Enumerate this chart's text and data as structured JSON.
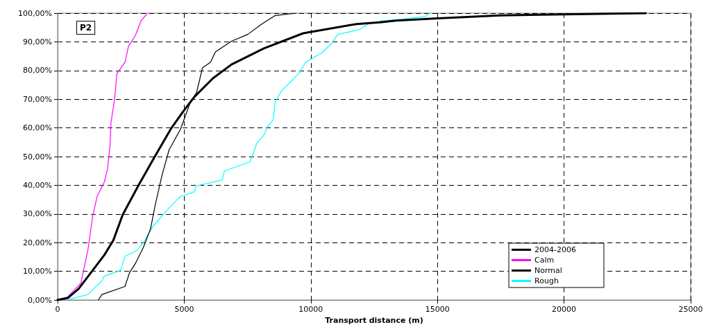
{
  "chart_data": {
    "type": "line",
    "xlabel": "Transport distance (m)",
    "annotations": [
      "P2"
    ],
    "xlim": [
      0,
      25000
    ],
    "xticks": [
      0,
      5000,
      10000,
      15000,
      20000,
      25000
    ],
    "ylim": [
      0,
      100
    ],
    "yticks": [
      {
        "value": 0,
        "label": "0,00%"
      },
      {
        "value": 10,
        "label": "10,00%"
      },
      {
        "value": 20,
        "label": "20,00%"
      },
      {
        "value": 30,
        "label": "30,00%"
      },
      {
        "value": 40,
        "label": "40,00%"
      },
      {
        "value": 50,
        "label": "50,00%"
      },
      {
        "value": 60,
        "label": "60,00%"
      },
      {
        "value": 70,
        "label": "70,00%"
      },
      {
        "value": 80,
        "label": "80,00%"
      },
      {
        "value": 90,
        "label": "90,00%"
      },
      {
        "value": 100,
        "label": "100,00%"
      }
    ],
    "grid": true,
    "legend": "bottom right",
    "marker": "none",
    "line_style": "solid",
    "series": [
      {
        "name": "2004-2006",
        "color": "#000000",
        "x": [
          0,
          420,
          830,
          1840,
          2200,
          2570,
          3210,
          3850,
          4490,
          4950,
          5400,
          6135,
          6865,
          8145,
          9700,
          11800,
          12720,
          13360,
          15000,
          17470,
          19940,
          23230
        ],
        "values": [
          0,
          0.8,
          3.9,
          15.6,
          20.8,
          29.7,
          40.2,
          50.2,
          59.9,
          65.6,
          70.8,
          77.3,
          82.1,
          87.7,
          93.0,
          96.2,
          96.8,
          97.4,
          98.2,
          99.2,
          99.6,
          100
        ]
      },
      {
        "name": "Calm",
        "color": "#ff00ff",
        "x": [
          280,
          920,
          1200,
          1380,
          1560,
          1840,
          1975,
          2070,
          2110,
          2250,
          2340,
          2660,
          2800,
          3070,
          3300,
          3530
        ],
        "values": [
          0,
          5.9,
          17.6,
          28.9,
          36.1,
          41.0,
          45.8,
          53.9,
          61.9,
          70.0,
          78.9,
          82.9,
          88.5,
          92.2,
          97.4,
          99.8
        ]
      },
      {
        "name": "Normal",
        "color": "#000000",
        "x": [
          1610,
          1750,
          2660,
          2840,
          3070,
          3390,
          3670,
          3850,
          4120,
          4400,
          4850,
          5220,
          5490,
          5720,
          6040,
          6230,
          6865,
          7510,
          8060,
          8600,
          9425
        ],
        "values": [
          0,
          1.9,
          4.7,
          9.5,
          12.7,
          18.4,
          24.8,
          32.9,
          43.4,
          52.3,
          59.5,
          68.4,
          72.4,
          80.9,
          82.9,
          86.5,
          90.2,
          92.6,
          96.2,
          99.2,
          100
        ]
      },
      {
        "name": "Rough",
        "color": "#00ffff",
        "x": [
          330,
          1200,
          1750,
          1840,
          2480,
          2660,
          3120,
          3390,
          3760,
          4400,
          4850,
          5400,
          5490,
          6500,
          6590,
          7600,
          7870,
          8145,
          8280,
          8510,
          8600,
          8830,
          9240,
          9560,
          9790,
          10430,
          10800,
          11070,
          11900,
          12260,
          12810,
          13630,
          14540,
          14650
        ],
        "values": [
          0,
          1.9,
          6.7,
          8.3,
          10.3,
          15.2,
          17.2,
          20.0,
          25.6,
          32.1,
          36.1,
          37.7,
          39.8,
          41.8,
          45.0,
          48.2,
          54.7,
          57.5,
          60.3,
          62.7,
          69.2,
          72.8,
          76.4,
          79.3,
          82.9,
          86.1,
          89.3,
          92.6,
          94.2,
          96.2,
          97.3,
          97.9,
          98.9,
          99.8
        ]
      }
    ]
  }
}
